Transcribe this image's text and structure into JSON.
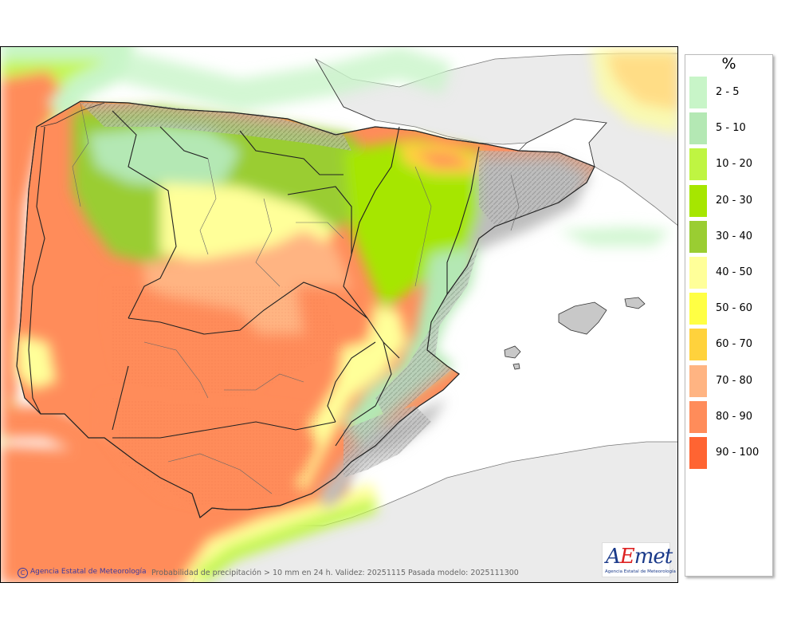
{
  "map": {
    "caption": "Probabilidad de precipitación > 10 mm en 24 h. Validez: 20251115 Pasada modelo: 2025111300",
    "credits": "Agencia Estatal de Meteorología",
    "credits_symbol": "C"
  },
  "logo": {
    "word_a": "A",
    "word_e": "E",
    "word_rest": "met",
    "subtitle": "Agencia Estatal de Meteorología"
  },
  "legend": {
    "unit": "%",
    "classes": [
      {
        "label": "2 - 5",
        "color": "#c8f5c8"
      },
      {
        "label": "5 - 10",
        "color": "#b4e8b4"
      },
      {
        "label": "10 - 20",
        "color": "#bff542"
      },
      {
        "label": "20 - 30",
        "color": "#a6e600"
      },
      {
        "label": "30 - 40",
        "color": "#9acd32"
      },
      {
        "label": "40 - 50",
        "color": "#ffff99"
      },
      {
        "label": "50 - 60",
        "color": "#ffff44"
      },
      {
        "label": "60 - 70",
        "color": "#ffd23c"
      },
      {
        "label": "70 - 80",
        "color": "#ffb482"
      },
      {
        "label": "80 - 90",
        "color": "#ff8c5a"
      },
      {
        "label": "90 - 100",
        "color": "#ff6432"
      }
    ]
  }
}
